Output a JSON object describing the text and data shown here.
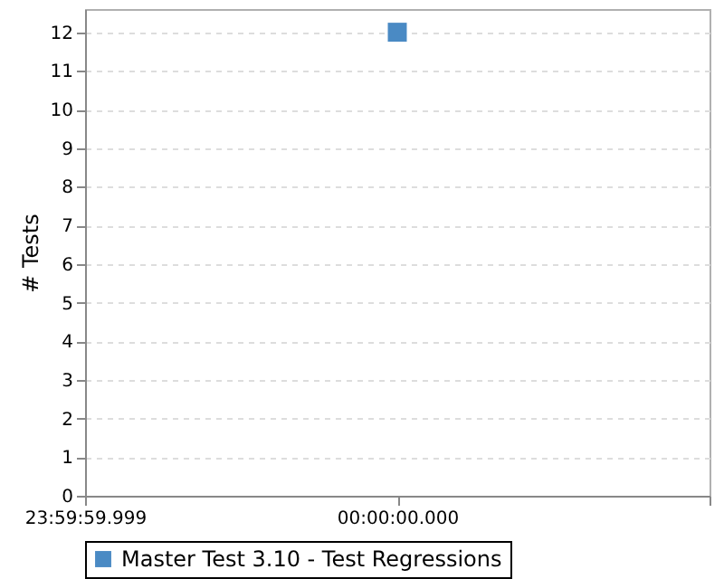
{
  "chart_data": {
    "type": "scatter",
    "ylabel": "# Tests",
    "categories": [
      "23:59:59.999",
      "00:00:00.000",
      null
    ],
    "series": [
      {
        "name": "Master Test 3.10 - Test Regressions",
        "color": "#4a8ac4",
        "values": [
          null,
          12,
          null
        ]
      }
    ],
    "ylim": [
      0,
      12.6
    ],
    "yticks": [
      0,
      1,
      2,
      3,
      4,
      5,
      6,
      7,
      8,
      9,
      10,
      11,
      12
    ],
    "grid": "y",
    "legend": "bottom",
    "marker": "square"
  }
}
